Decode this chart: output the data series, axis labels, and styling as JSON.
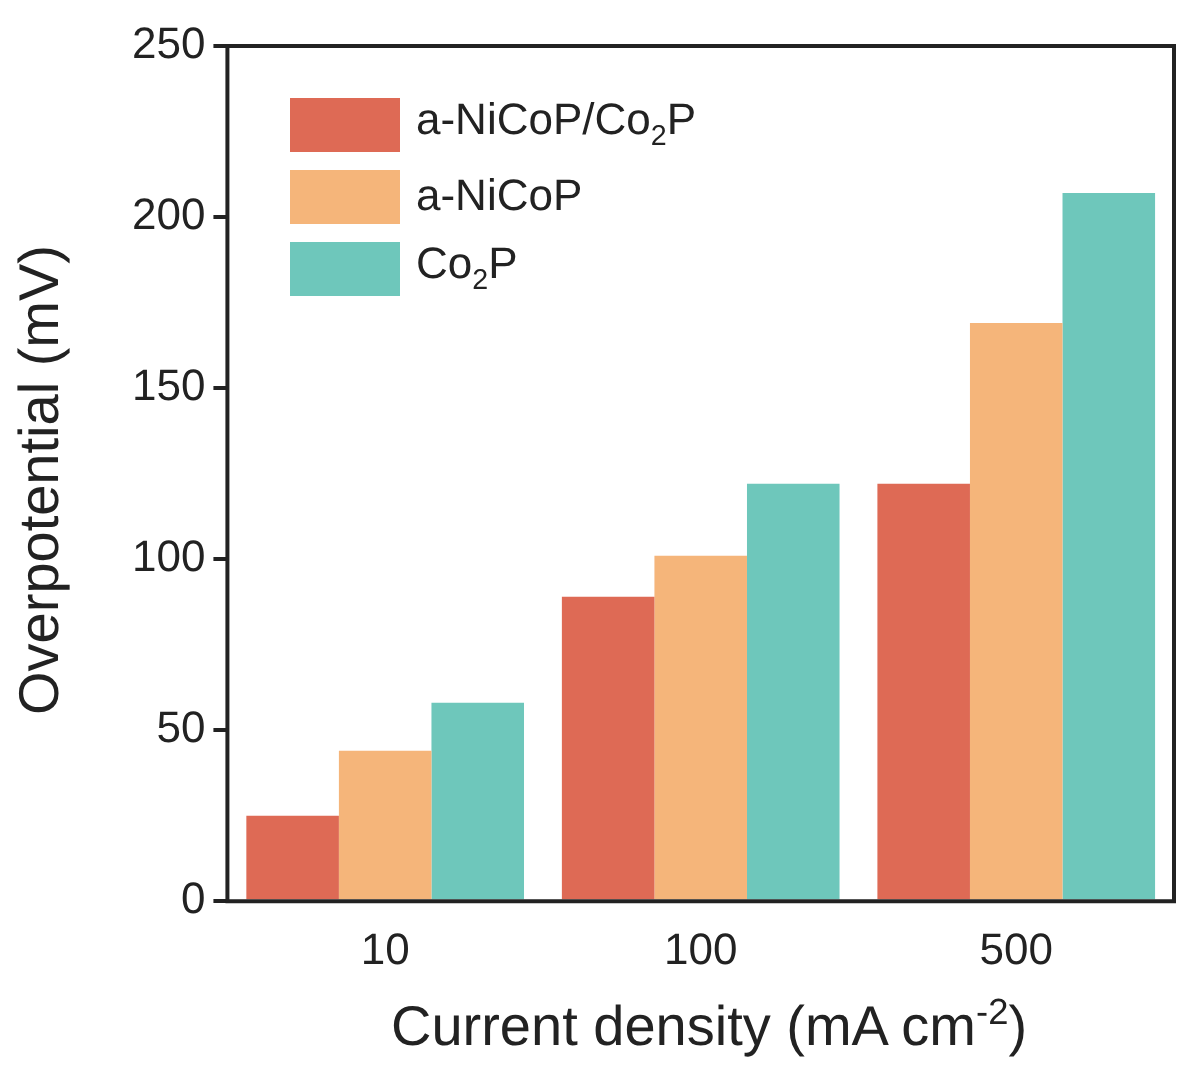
{
  "chart_data": {
    "type": "bar",
    "xlabel": "Current density (mA cm$^{-2}$)",
    "ylabel": "Overpotential (mV)",
    "categories": [
      "10",
      "100",
      "500"
    ],
    "series": [
      {
        "name": "a-NiCoP/Co$_{2}$P",
        "color": "#de6a55",
        "values": [
          25,
          89,
          122
        ]
      },
      {
        "name": "a-NiCoP",
        "color": "#f5b57a",
        "values": [
          44,
          101,
          169
        ]
      },
      {
        "name": "Co$_{2}$P",
        "color": "#6ec7bb",
        "values": [
          58,
          122,
          207
        ]
      }
    ],
    "ylim": [
      0,
      250
    ],
    "yticks": [
      0,
      50,
      100,
      150,
      200,
      250
    ],
    "legend": "top left"
  }
}
